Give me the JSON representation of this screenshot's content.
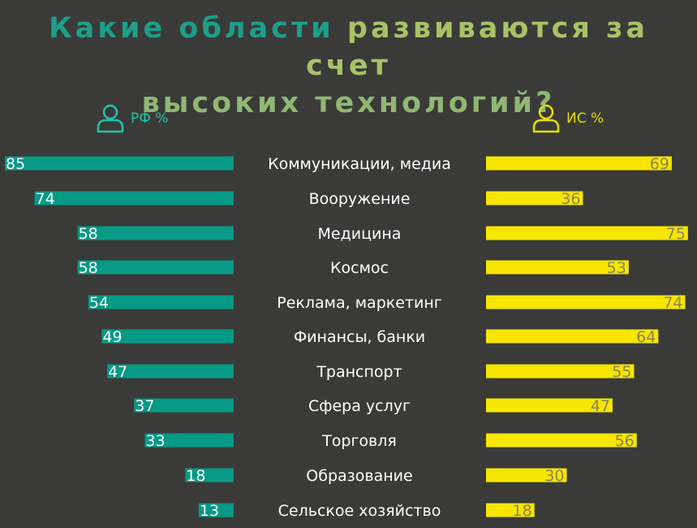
{
  "title": {
    "line1_part1": "Какие области ",
    "line1_part2": "развиваются за счет",
    "line2": "высоких технологий?"
  },
  "colors": {
    "background": "#3a3a38",
    "teal": "#069a86",
    "yellow": "#f7e600",
    "title_teal": "#1d9e8a",
    "title_green": "#a8c267",
    "title_line2": "#8fb873",
    "left_label": "#1fc4ad",
    "right_label": "#e8df00",
    "right_value_text": "#8a8552",
    "category_text": "#ffffff"
  },
  "legend": {
    "left": {
      "label": "РФ %",
      "icon": "person-icon"
    },
    "right": {
      "label": "ИС %",
      "icon": "person-icon"
    }
  },
  "chart_data": {
    "type": "bar",
    "orientation": "horizontal-butterfly",
    "categories": [
      "Коммуникации, медиа",
      "Вооружение",
      "Медицина",
      "Космос",
      "Реклама, маркетинг",
      "Финансы, банки",
      "Транспорт",
      "Сфера услуг",
      "Торговля",
      "Образование",
      "Сельское хозяйство"
    ],
    "series": [
      {
        "name": "РФ %",
        "side": "left",
        "values": [
          85,
          74,
          58,
          58,
          54,
          49,
          47,
          37,
          33,
          18,
          13
        ]
      },
      {
        "name": "ИС %",
        "side": "right",
        "values": [
          69,
          36,
          75,
          53,
          74,
          64,
          55,
          47,
          56,
          30,
          18
        ]
      }
    ],
    "xlim": [
      0,
      85
    ]
  }
}
